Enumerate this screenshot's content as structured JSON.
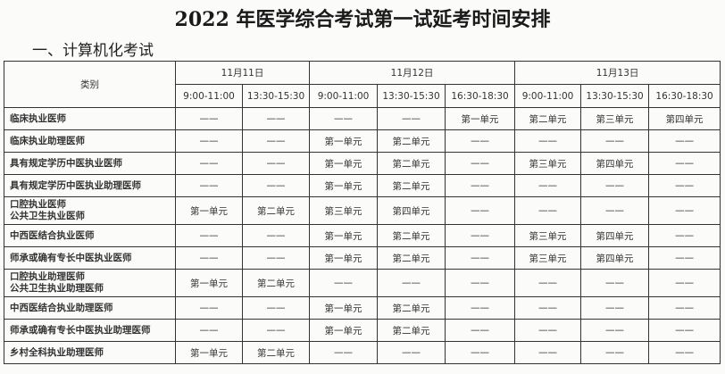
{
  "title": "2022 年医学综合考试第一试延考时间安排",
  "section": "一、计算机化考试",
  "table": {
    "category_header": "类别",
    "dates": [
      {
        "label": "11月11日",
        "span": 2
      },
      {
        "label": "11月12日",
        "span": 3
      },
      {
        "label": "11月13日",
        "span": 3
      }
    ],
    "times": [
      "9:00-11:00",
      "13:30-15:30",
      "9:00-11:00",
      "13:30-15:30",
      "16:30-18:30",
      "9:00-11:00",
      "13:30-15:30",
      "16:30-18:30"
    ],
    "rows": [
      {
        "category": [
          "临床执业医师"
        ],
        "cells": [
          "——",
          "——",
          "——",
          "——",
          "第一单元",
          "第二单元",
          "第三单元",
          "第四单元"
        ]
      },
      {
        "category": [
          "临床执业助理医师"
        ],
        "cells": [
          "——",
          "——",
          "第一单元",
          "第二单元",
          "——",
          "——",
          "——",
          "——"
        ]
      },
      {
        "category": [
          "具有规定学历中医执业医师"
        ],
        "cells": [
          "——",
          "——",
          "第一单元",
          "第二单元",
          "——",
          "第三单元",
          "第四单元",
          "——"
        ]
      },
      {
        "category": [
          "具有规定学历中医执业助理医师"
        ],
        "cells": [
          "——",
          "——",
          "第一单元",
          "第二单元",
          "——",
          "——",
          "——",
          "——"
        ]
      },
      {
        "category": [
          "口腔执业医师",
          "公共卫生执业医师"
        ],
        "cells": [
          "第一单元",
          "第二单元",
          "第三单元",
          "第四单元",
          "——",
          "——",
          "——",
          "——"
        ]
      },
      {
        "category": [
          "中西医结合执业医师"
        ],
        "cells": [
          "——",
          "——",
          "第一单元",
          "第二单元",
          "——",
          "第三单元",
          "第四单元",
          "——"
        ]
      },
      {
        "category": [
          "师承或确有专长中医执业医师"
        ],
        "cells": [
          "——",
          "——",
          "第一单元",
          "第二单元",
          "——",
          "第三单元",
          "第四单元",
          "——"
        ]
      },
      {
        "category": [
          "口腔执业助理医师",
          "公共卫生执业助理医师"
        ],
        "cells": [
          "第一单元",
          "第二单元",
          "——",
          "——",
          "——",
          "——",
          "——",
          "——"
        ]
      },
      {
        "category": [
          "中西医结合执业助理医师"
        ],
        "cells": [
          "——",
          "——",
          "第一单元",
          "第二单元",
          "——",
          "——",
          "——",
          "——"
        ]
      },
      {
        "category": [
          "师承或确有专长中医执业助理医师"
        ],
        "cells": [
          "——",
          "——",
          "第一单元",
          "第二单元",
          "——",
          "——",
          "——",
          "——"
        ]
      },
      {
        "category": [
          "乡村全科执业助理医师"
        ],
        "cells": [
          "第一单元",
          "第二单元",
          "——",
          "——",
          "——",
          "——",
          "——",
          "——"
        ]
      }
    ]
  }
}
